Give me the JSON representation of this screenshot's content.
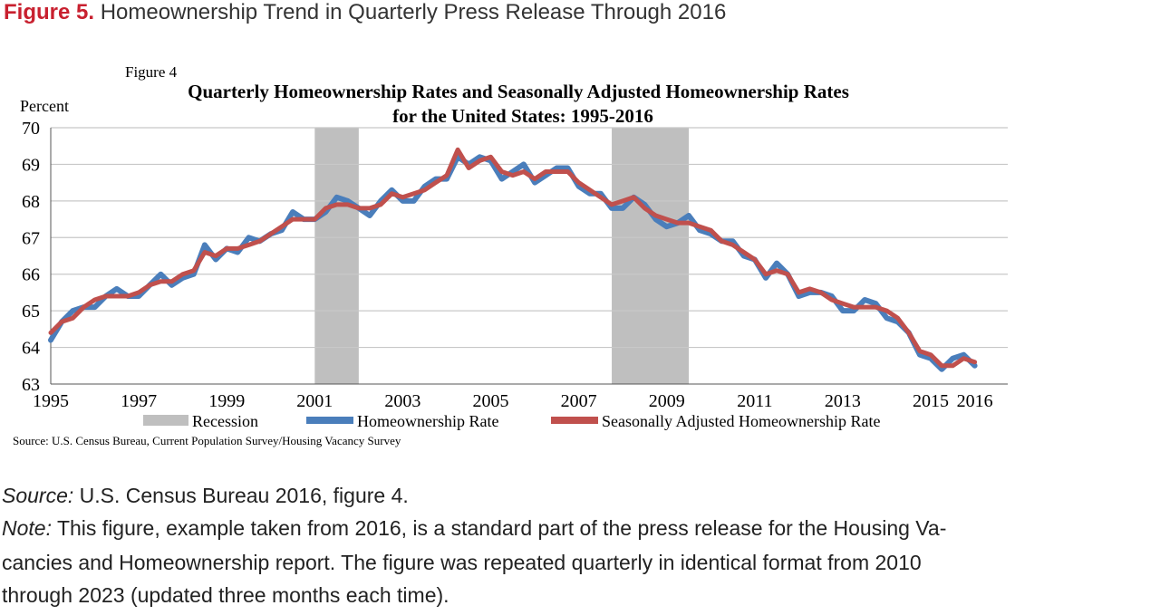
{
  "figure": {
    "label": "Figure 5.",
    "title": "Homeownership Trend in Quarterly Press Release Through 2016"
  },
  "chart_data": {
    "type": "line",
    "figure_label": "Figure 4",
    "title_line1": "Quarterly Homeownership Rates and Seasonally Adjusted Homeownership Rates",
    "title_line2": "for the United States: 1995-2016",
    "ylabel": "Percent",
    "ylim": [
      63,
      70
    ],
    "yticks": [
      63,
      64,
      65,
      66,
      67,
      68,
      69,
      70
    ],
    "xlim": [
      1995,
      2016.75
    ],
    "xticks": [
      1995,
      1997,
      1999,
      2001,
      2003,
      2005,
      2007,
      2009,
      2011,
      2013,
      2015,
      2016
    ],
    "xtick_labels": [
      "1995",
      "1997",
      "1999",
      "2001",
      "2003",
      "2005",
      "2007",
      "2009",
      "2011",
      "2013",
      "2015",
      "2016"
    ],
    "grid": true,
    "recessions": [
      [
        2001.0,
        2002.0
      ],
      [
        2007.75,
        2009.5
      ]
    ],
    "legend": {
      "placement": "bottom",
      "recession_label": "Recession"
    },
    "colors": {
      "recession": "#bfbfbf",
      "rate": "#4a7ebb",
      "seasonal": "#c0504d",
      "grid": "#c8c8c8"
    },
    "series": [
      {
        "name": "Homeownership Rate",
        "values": [
          64.2,
          64.7,
          65.0,
          65.1,
          65.1,
          65.4,
          65.6,
          65.4,
          65.4,
          65.7,
          66.0,
          65.7,
          65.9,
          66.0,
          66.8,
          66.4,
          66.7,
          66.6,
          67.0,
          66.9,
          67.1,
          67.2,
          67.7,
          67.5,
          67.5,
          67.7,
          68.1,
          68.0,
          67.8,
          67.6,
          68.0,
          68.3,
          68.0,
          68.0,
          68.4,
          68.6,
          68.6,
          69.2,
          69.0,
          69.2,
          69.1,
          68.6,
          68.8,
          69.0,
          68.5,
          68.7,
          68.9,
          68.9,
          68.4,
          68.2,
          68.2,
          67.8,
          67.8,
          68.1,
          67.9,
          67.5,
          67.3,
          67.4,
          67.6,
          67.2,
          67.1,
          66.9,
          66.9,
          66.5,
          66.4,
          65.9,
          66.3,
          66.0,
          65.4,
          65.5,
          65.5,
          65.4,
          65.0,
          65.0,
          65.3,
          65.2,
          64.8,
          64.7,
          64.4,
          63.8,
          63.7,
          63.4,
          63.7,
          63.8,
          63.5
        ]
      },
      {
        "name": "Seasonally Adjusted Homeownership Rate",
        "values": [
          64.4,
          64.7,
          64.8,
          65.1,
          65.3,
          65.4,
          65.4,
          65.4,
          65.5,
          65.7,
          65.8,
          65.8,
          66.0,
          66.1,
          66.6,
          66.5,
          66.7,
          66.7,
          66.8,
          66.9,
          67.1,
          67.3,
          67.5,
          67.5,
          67.5,
          67.8,
          67.9,
          67.9,
          67.8,
          67.8,
          67.9,
          68.2,
          68.1,
          68.2,
          68.3,
          68.5,
          68.7,
          69.4,
          68.9,
          69.1,
          69.2,
          68.8,
          68.7,
          68.8,
          68.6,
          68.8,
          68.8,
          68.8,
          68.5,
          68.3,
          68.1,
          67.9,
          68.0,
          68.1,
          67.8,
          67.6,
          67.5,
          67.4,
          67.4,
          67.3,
          67.2,
          66.9,
          66.8,
          66.6,
          66.4,
          66.0,
          66.1,
          66.0,
          65.5,
          65.6,
          65.5,
          65.3,
          65.2,
          65.1,
          65.1,
          65.1,
          65.0,
          64.8,
          64.4,
          63.9,
          63.8,
          63.5,
          63.5,
          63.7,
          63.6
        ]
      }
    ],
    "source": "Source: U.S. Census Bureau, Current Population Survey/Housing Vacancy Survey"
  },
  "footer": {
    "source_label": "Source:",
    "source_text": " U.S. Census Bureau 2016, figure 4.",
    "note_label": "Note:",
    "note_line1": " This figure, example taken from 2016, is a standard part of the press release for the Housing Va-",
    "note_line2": "cancies and Homeownership report. The figure was repeated quarterly in identical format from 2010",
    "note_line3": "through 2023 (updated three months each time)."
  }
}
